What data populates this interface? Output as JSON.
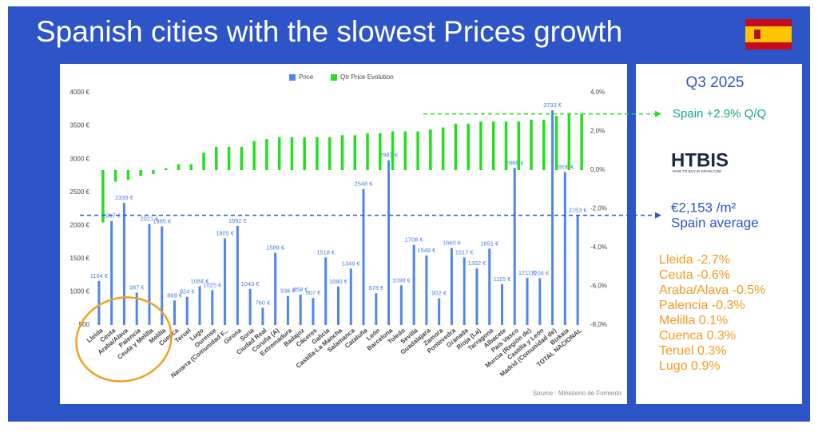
{
  "chart_data": {
    "type": "bar",
    "title": "Spanish cities with the slowest Prices growth",
    "source": "Source : Ministerio de Fomento",
    "categories": [
      "Lleida",
      "Ceuta",
      "Araba/Alava",
      "Palencia",
      "Ceuta y Melilla",
      "Melilla",
      "Cuenca",
      "Teruel",
      "Lugo",
      "Ourense",
      "Navarra (Comunidad F...",
      "Girona",
      "Soria",
      "Ciudad Real",
      "Coruña (A)",
      "Extremadura",
      "Badajoz",
      "Cáceres",
      "Galicia",
      "Castilla-La Mancha",
      "Salamanca",
      "Cataluña",
      "León",
      "Barcelona",
      "Toledo",
      "Sevilla",
      "Guadalajara",
      "Zamora",
      "Pontevedra",
      "Granada",
      "Rioja (La)",
      "Tarragona",
      "Albacete",
      "País Vasco",
      "Murcia (Región de)",
      "Castilla y León",
      "Madrid (Comunidad de)",
      "Bizkaia",
      "TOTAL NACIONAL"
    ],
    "series": [
      {
        "name": "Price",
        "color": "#4f86ec",
        "values": [
          1164,
          2067,
          2339,
          987,
          2021,
          1985,
          869,
          924,
          1084,
          1025,
          1805,
          1992,
          1043,
          760,
          1589,
          936,
          958,
          907,
          1518,
          1080,
          1349,
          2548,
          978,
          2981,
          1098,
          1708,
          1548,
          902,
          1660,
          1517,
          1352,
          1651,
          1115,
          2866,
          1211,
          1204,
          3733,
          2806,
          2153
        ],
        "value_labels": [
          "1164 €",
          "2067 €",
          "2339 €",
          "987 €",
          "2021 €",
          "1985 €",
          "869 €",
          "924 €",
          "1084 €",
          "1025 €",
          "1805 €",
          "1992 €",
          "1043 €",
          "760 €",
          "1589 €",
          "936 €",
          "958 €",
          "907 €",
          "1518 €",
          "1080 €",
          "1349 €",
          "2548 €",
          "978 €",
          "2981 €",
          "1098 €",
          "1708 €",
          "1548 €",
          "902 €",
          "1660 €",
          "1517 €",
          "1352 €",
          "1651 €",
          "1115 €",
          "2866 €",
          "1211 €",
          "1204 €",
          "3733 €",
          "2806 €",
          "2153 €"
        ]
      },
      {
        "name": "Qtr Price Evolution",
        "color": "#22e01e",
        "axis": "y2",
        "values": [
          -2.7,
          -0.6,
          -0.5,
          -0.3,
          -0.2,
          0.1,
          0.3,
          0.3,
          0.9,
          1.2,
          1.2,
          1.2,
          1.5,
          1.6,
          1.7,
          1.7,
          1.7,
          1.7,
          1.7,
          1.8,
          1.8,
          1.9,
          1.9,
          2.0,
          2.0,
          2.0,
          2.1,
          2.2,
          2.4,
          2.4,
          2.5,
          2.5,
          2.5,
          2.5,
          2.6,
          2.6,
          2.8,
          2.9,
          2.9
        ]
      }
    ],
    "ylim": [
      500,
      4000
    ],
    "yticks": [
      {
        "value": 500,
        "label": "500"
      },
      {
        "value": 1000,
        "label": "1000 €"
      },
      {
        "value": 1500,
        "label": "1500 €"
      },
      {
        "value": 2000,
        "label": "2000 €"
      },
      {
        "value": 2500,
        "label": "2500 €"
      },
      {
        "value": 3000,
        "label": "3000 €"
      },
      {
        "value": 3500,
        "label": "3500 €"
      },
      {
        "value": 4000,
        "label": "4000 €"
      }
    ],
    "y2lim": [
      -8,
      4
    ],
    "y2ticks": [
      {
        "value": -8,
        "label": "-8,0%"
      },
      {
        "value": -6,
        "label": "-6,0%"
      },
      {
        "value": -4,
        "label": "-4,0%"
      },
      {
        "value": -2,
        "label": "-2,0%"
      },
      {
        "value": 0,
        "label": "0,0%"
      },
      {
        "value": 2,
        "label": "2,0%"
      },
      {
        "value": 4,
        "label": "4,0%"
      }
    ],
    "legend": "top"
  },
  "side_panel": {
    "period": "Q3 2025",
    "spain_change": "Spain +2.9% Q/Q",
    "logo": "HTBIS",
    "logo_tagline": "HOW TO BUY IN SPAIN.COM",
    "average_value": "€2,153 /m²",
    "average_label": "Spain average",
    "slowest": [
      "Lleida -2.7%",
      "Ceuta -0.6%",
      "Araba/Alava -0.5%",
      "Palencia -0.3%",
      "Melilla 0.1%",
      "Cuenca 0.3%",
      "Teruel 0.3%",
      "Lugo 0.9%"
    ]
  }
}
